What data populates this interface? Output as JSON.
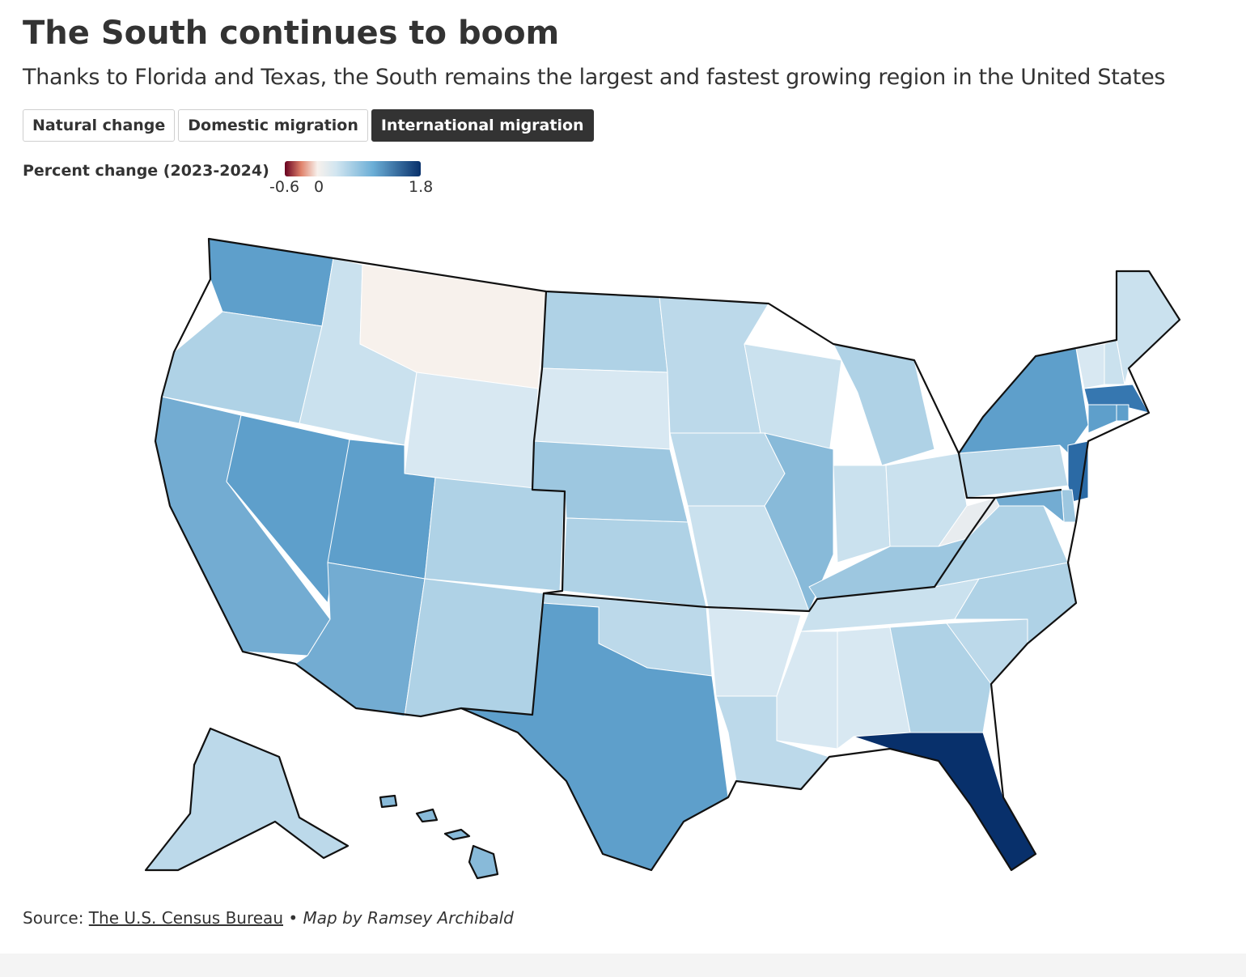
{
  "header": {
    "title": "The South continues to boom",
    "subtitle": "Thanks to Florida and Texas, the South remains the largest and fastest growing region in the United States"
  },
  "tabs": [
    {
      "label": "Natural change",
      "active": false
    },
    {
      "label": "Domestic migration",
      "active": false
    },
    {
      "label": "International migration",
      "active": true
    }
  ],
  "legend": {
    "title": "Percent change (2023-2024)",
    "ticks": [
      "-0.6",
      "0",
      "1.8"
    ],
    "min": -0.6,
    "max": 1.8
  },
  "colors": {
    "negative_dark": "#67001f",
    "neutral": "#f7f1ec",
    "positive_dark": "#08306b",
    "region_border": "#111111"
  },
  "map_data": {
    "metric": "International migration, percent change (2023-2024)",
    "states": [
      {
        "code": "WA",
        "value": 0.9
      },
      {
        "code": "OR",
        "value": 0.5
      },
      {
        "code": "CA",
        "value": 0.8
      },
      {
        "code": "NV",
        "value": 0.9
      },
      {
        "code": "ID",
        "value": 0.3
      },
      {
        "code": "MT",
        "value": 0.0
      },
      {
        "code": "WY",
        "value": 0.2
      },
      {
        "code": "UT",
        "value": 0.9
      },
      {
        "code": "AZ",
        "value": 0.8
      },
      {
        "code": "CO",
        "value": 0.5
      },
      {
        "code": "NM",
        "value": 0.5
      },
      {
        "code": "ND",
        "value": 0.5
      },
      {
        "code": "SD",
        "value": 0.2
      },
      {
        "code": "NE",
        "value": 0.6
      },
      {
        "code": "KS",
        "value": 0.5
      },
      {
        "code": "OK",
        "value": 0.4
      },
      {
        "code": "TX",
        "value": 0.9
      },
      {
        "code": "MN",
        "value": 0.4
      },
      {
        "code": "IA",
        "value": 0.4
      },
      {
        "code": "MO",
        "value": 0.3
      },
      {
        "code": "AR",
        "value": 0.2
      },
      {
        "code": "LA",
        "value": 0.4
      },
      {
        "code": "WI",
        "value": 0.3
      },
      {
        "code": "IL",
        "value": 0.7
      },
      {
        "code": "MI",
        "value": 0.5
      },
      {
        "code": "IN",
        "value": 0.3
      },
      {
        "code": "OH",
        "value": 0.3
      },
      {
        "code": "KY",
        "value": 0.6
      },
      {
        "code": "TN",
        "value": 0.3
      },
      {
        "code": "MS",
        "value": 0.2
      },
      {
        "code": "AL",
        "value": 0.2
      },
      {
        "code": "GA",
        "value": 0.5
      },
      {
        "code": "FL",
        "value": 1.8
      },
      {
        "code": "SC",
        "value": 0.4
      },
      {
        "code": "NC",
        "value": 0.5
      },
      {
        "code": "VA",
        "value": 0.5
      },
      {
        "code": "WV",
        "value": 0.1
      },
      {
        "code": "PA",
        "value": 0.4
      },
      {
        "code": "NY",
        "value": 0.9
      },
      {
        "code": "VT",
        "value": 0.2
      },
      {
        "code": "NH",
        "value": 0.3
      },
      {
        "code": "ME",
        "value": 0.3
      },
      {
        "code": "MA",
        "value": 1.2
      },
      {
        "code": "RI",
        "value": 0.9
      },
      {
        "code": "CT",
        "value": 0.9
      },
      {
        "code": "NJ",
        "value": 1.3
      },
      {
        "code": "DE",
        "value": 0.6
      },
      {
        "code": "MD",
        "value": 0.8
      },
      {
        "code": "AK",
        "value": 0.4
      },
      {
        "code": "HI",
        "value": 0.7
      }
    ]
  },
  "footer": {
    "source_prefix": "Source: ",
    "source_link": "The U.S. Census Bureau",
    "separator": " • ",
    "credit": "Map by Ramsey Archibald"
  }
}
